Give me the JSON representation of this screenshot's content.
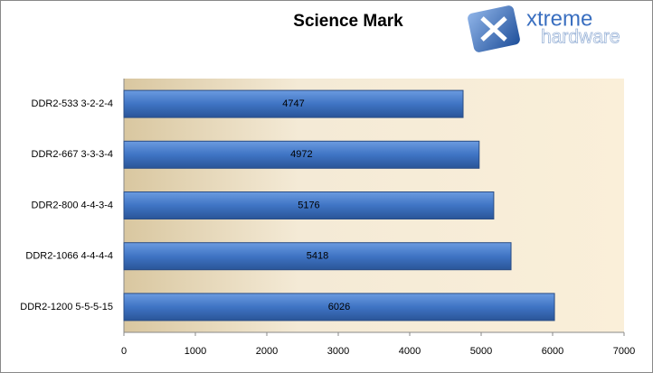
{
  "chart_data": {
    "type": "bar",
    "orientation": "horizontal",
    "title": "Science Mark",
    "categories": [
      "DDR2-533 3-2-2-4",
      "DDR2-667 3-3-3-4",
      "DDR2-800 4-4-3-4",
      "DDR2-1066 4-4-4-4",
      "DDR2-1200 5-5-5-15"
    ],
    "values": [
      4747,
      4972,
      5176,
      5418,
      6026
    ],
    "color": "#3f74c4",
    "xlim": [
      0,
      7000
    ],
    "xticks": [
      0,
      1000,
      2000,
      3000,
      4000,
      5000,
      6000,
      7000
    ]
  },
  "logo": {
    "line1": "xtreme",
    "line2": "hardware"
  }
}
